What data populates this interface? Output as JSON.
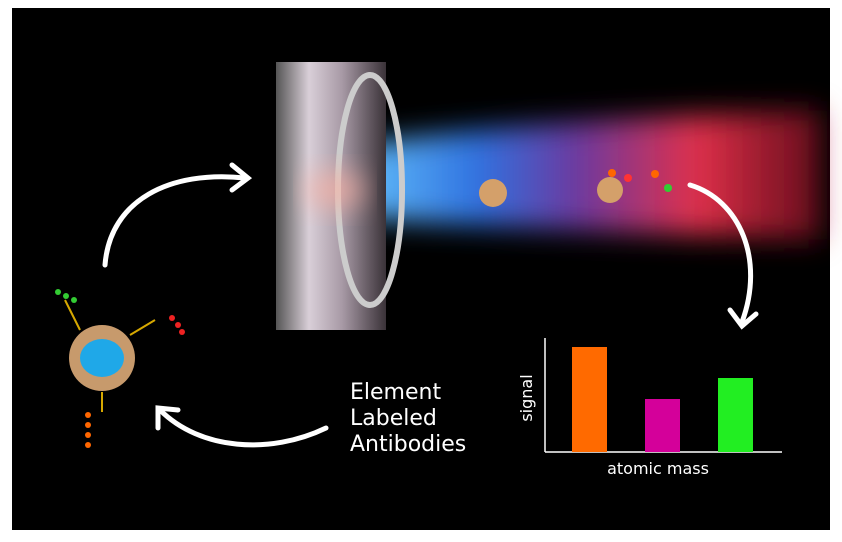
{
  "labels": {
    "antibodies": [
      "Element",
      "Labeled",
      "Antibodies"
    ],
    "y_axis": "signal",
    "x_axis": "atomic mass"
  }
}
